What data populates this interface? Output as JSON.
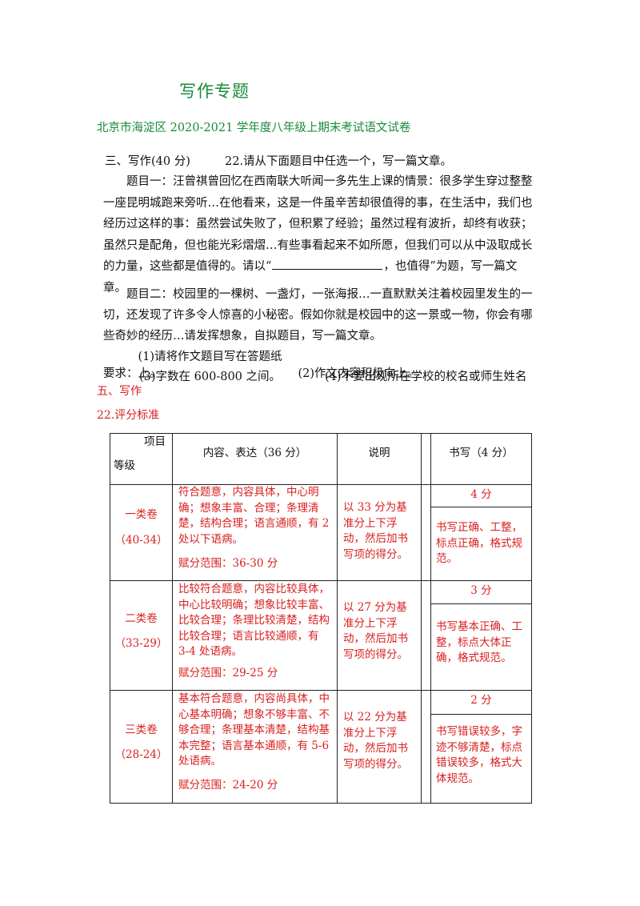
{
  "doc": {
    "title": "写作专题",
    "subtitle": "北京市海淀区 2020-2021 学年度八年级上期末考试语文试卷"
  },
  "question": {
    "section": "三、写作(40 分)",
    "prompt": "22.请从下面题目中任选一个，写一篇文章。",
    "topic1_part1": "题目一：汪曾祺曾回忆在西南联大听闻一多先生上课的情景：很多学生穿过整整一座昆明城跑来旁听…在他看来，这是一件虽辛苦却很值得的事，在生活中，我们也经历过这样的事：虽然尝试失败了，但积累了经验；虽然过程有波折，却终有收获；虽然只是配角，但也能光彩熠熠…有些事看起来不如所愿，但我们可以从中汲取成长的力量，这些都是值得的。请以“",
    "topic1_part2": "，也值得”为题，写一篇文章。",
    "topic2": "题目二：校园里的一棵树、一盏灯，一张海报…一直默默关注着校园里发生的一切，还发现了许多令人惊喜的小秘密。假如你就是校园中的这一景或一物，你会有哪些奇妙的经历…请发挥想象，自拟题目，写一篇文章。",
    "req_label": "要求：",
    "req1": "(1)请将作文题目写在答题纸上。",
    "req2": "(2)作文内容积极向上。",
    "req3": "(3)字数在 600-800 之间。",
    "req4": "(4)不要出现所在学校的校名或师生姓名"
  },
  "answer": {
    "section": "五、写作",
    "item": "22.评分标准"
  },
  "table": {
    "header": {
      "item": "项目",
      "grade": "等级",
      "content": "内容、表达（36 分）",
      "note": "说明",
      "writing": "书写（4 分）"
    },
    "rows": [
      {
        "grade": "一类卷",
        "range": "（40-34）",
        "content": "符合题意，内容具体，中心明确；想象丰富、合理；条理清楚，结构合理；语言通顺，有 2 处以下语病。",
        "score": "赋分范围：36-30 分",
        "note": "以 33 分为基准分上下浮动，然后加书写项的得分。",
        "w_score": "4 分",
        "w_desc": "书写正确、工整，标点正确，格式规范。"
      },
      {
        "grade": "二类卷",
        "range": "（33-29）",
        "content": "比较符合题意，内容比较具体，中心比较明确；想象比较丰富、比较合理；条理比较清楚，结构比较合理；语言比较通顺，有 3-4 处语病。",
        "score": "赋分范围：29-25 分",
        "note": "以 27 分为基准分上下浮动，然后加书写项的得分。",
        "w_score": "3 分",
        "w_desc": "书写基本正确、工整，标点大体正确，格式规范。"
      },
      {
        "grade": "三类卷",
        "range": "（28-24）",
        "content": "基本符合题意，内容尚具体，中心基本明确；想象不够丰富、不够合理；条理基本清楚，结构基本完整；语言基本通顺，有 5-6 处语病。",
        "score": "赋分范围：24-20 分",
        "note": "以 22 分为基准分上下浮动，然后加书写项的得分。",
        "w_score": "2 分",
        "w_desc": "书写错误较多，字迹不够清楚，标点错误较多，格式大体规范。"
      }
    ]
  }
}
